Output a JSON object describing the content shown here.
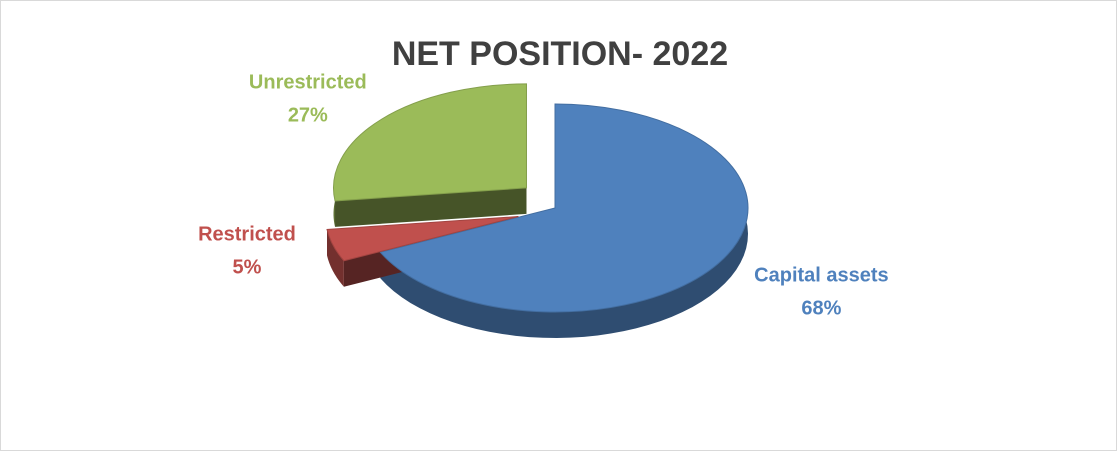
{
  "chart_data": {
    "type": "pie",
    "title": "NET POSITION- 2022",
    "categories": [
      "Capital assets",
      "Restricted",
      "Unrestricted"
    ],
    "values": [
      68,
      5,
      27
    ],
    "value_labels": [
      "68%",
      "5%",
      "27%"
    ],
    "colors": [
      "#4f81bd",
      "#c0504d",
      "#9bbb59"
    ]
  }
}
